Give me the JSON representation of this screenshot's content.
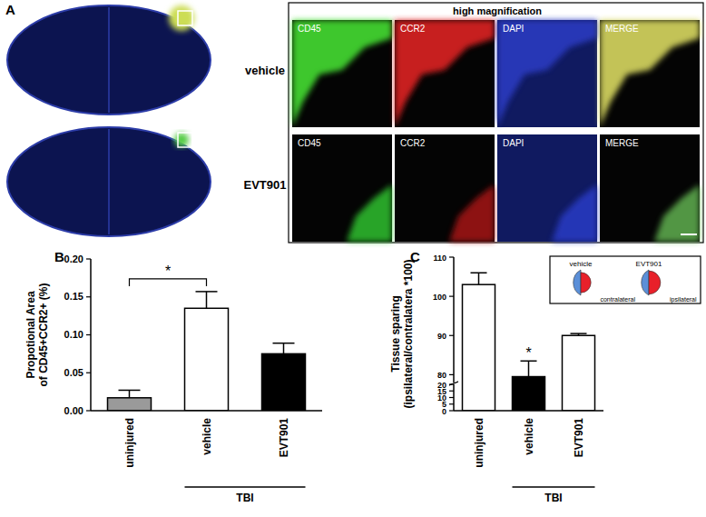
{
  "panel_a": {
    "label": "A",
    "title": "high magnification",
    "rows": [
      {
        "name": "vehicle",
        "channels": [
          "CD45",
          "CCR2",
          "DAPI",
          "MERGE"
        ]
      },
      {
        "name": "EVT901",
        "channels": [
          "CD45",
          "CCR2",
          "DAPI",
          "MERGE"
        ]
      }
    ]
  },
  "chart_data": [
    {
      "panel": "B",
      "type": "bar",
      "y_label": [
        "Propotional Area",
        "of CD45+CCR2+ (%)"
      ],
      "categories": [
        "uninjured",
        "vehicle",
        "EVT901"
      ],
      "values": [
        0.017,
        0.135,
        0.075
      ],
      "errors": [
        0.01,
        0.022,
        0.014
      ],
      "colors": [
        "#9a9a9a",
        "#ffffff",
        "#000000"
      ],
      "ylim": [
        0,
        0.2
      ],
      "yticks": [
        {
          "value": 0,
          "label": "0.00"
        },
        {
          "value": 0.05,
          "label": "0.05"
        },
        {
          "value": 0.1,
          "label": "0.10"
        },
        {
          "value": 0.15,
          "label": "0.15"
        },
        {
          "value": 0.2,
          "label": "0.20"
        }
      ],
      "group": {
        "label": "TBI",
        "categories": [
          1,
          2
        ]
      },
      "annotations": [
        {
          "text": "*",
          "categories": [
            0,
            1
          ]
        }
      ]
    },
    {
      "panel": "C",
      "type": "bar",
      "y_label": [
        "Tissue sparing",
        "(ipsilateral/contralatera *100)"
      ],
      "categories": [
        "uninjured",
        "vehicle",
        "EVT901"
      ],
      "values": [
        103,
        79.5,
        90
      ],
      "errors": [
        3,
        4,
        0.5
      ],
      "colors": [
        "#ffffff",
        "#000000",
        "#ffffff"
      ],
      "ylim": [
        0,
        110
      ],
      "ybreak": [
        20,
        78
      ],
      "yticks": [
        0,
        5,
        10,
        15,
        20,
        80,
        90,
        100,
        110
      ],
      "group": {
        "label": "TBI",
        "categories": [
          1,
          2
        ]
      },
      "annotations": [
        {
          "text": "*",
          "categories": [
            1
          ]
        }
      ],
      "inset": {
        "labels": [
          "vehicle",
          "EVT901"
        ],
        "sides": [
          "contralateral",
          "ipsilateral"
        ]
      }
    }
  ]
}
